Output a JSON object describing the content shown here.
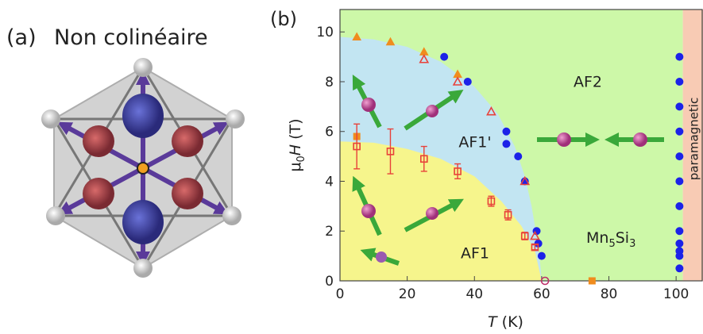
{
  "panel_a": {
    "label": "(a)",
    "title": "Non colinéaire"
  },
  "chart_data": {
    "type": "scatter",
    "panel_label": "(b)",
    "xlabel_parts": [
      "T",
      " (K)"
    ],
    "ylabel_parts": [
      "μ",
      "0",
      "H",
      " (T)"
    ],
    "xlim": [
      0,
      108
    ],
    "ylim": [
      0,
      10.9
    ],
    "xticks": [
      0,
      20,
      40,
      60,
      80,
      100
    ],
    "yticks": [
      0,
      2,
      4,
      6,
      8,
      10
    ],
    "regions": [
      {
        "label": "AF2",
        "color": "#cdf8a8",
        "x": [
          0,
          102,
          102,
          0
        ],
        "y": [
          0,
          0,
          10.9,
          10.9
        ]
      },
      {
        "label": "paramagnetic",
        "color": "#f8cbb4",
        "x": [
          102,
          108,
          108,
          102
        ],
        "y": [
          0,
          0,
          10.9,
          10.9
        ]
      },
      {
        "label": "AF1'",
        "color": "#c2e5f2",
        "x": [
          0,
          10,
          20,
          30,
          40,
          47,
          52,
          55,
          57,
          58.5,
          59.5,
          60,
          0
        ],
        "y": [
          9.8,
          9.7,
          9.4,
          8.8,
          7.8,
          6.7,
          5.4,
          4.2,
          3,
          1.8,
          0.8,
          0,
          0
        ]
      },
      {
        "label": "AF1",
        "color": "#f6f58c",
        "x": [
          0,
          10,
          20,
          30,
          40,
          48,
          54,
          58,
          60,
          0
        ],
        "y": [
          5.6,
          5.55,
          5.3,
          4.9,
          4.2,
          3.2,
          2.2,
          1.2,
          0,
          0
        ]
      }
    ],
    "compound_parts": [
      "Mn",
      "5",
      "Si",
      "3"
    ],
    "series": [
      {
        "marker": "circle",
        "filled": true,
        "color": "#1c22e8",
        "x": [
          31,
          38,
          49.5,
          49.5,
          53,
          55,
          58.5,
          59,
          60,
          101,
          101,
          101,
          101,
          101,
          101,
          101,
          101,
          101,
          101,
          101,
          101
        ],
        "values": [
          9,
          8,
          6,
          5.5,
          5,
          4,
          2,
          1.5,
          1,
          9,
          8,
          7,
          6,
          5,
          4,
          3,
          2,
          1.5,
          1.2,
          1,
          0.5
        ]
      },
      {
        "marker": "triangle",
        "filled": true,
        "color": "#f08c1e",
        "x": [
          5,
          15,
          25,
          35
        ],
        "values": [
          9.8,
          9.6,
          9.2,
          8.3
        ]
      },
      {
        "marker": "square",
        "filled": true,
        "color": "#f08c1e",
        "x": [
          5,
          75
        ],
        "values": [
          5.8,
          0
        ]
      },
      {
        "marker": "triangle",
        "filled": false,
        "color": "#e8413a",
        "x": [
          25,
          35,
          45,
          55,
          58
        ],
        "values": [
          8.9,
          8.0,
          6.8,
          4.0,
          1.8
        ]
      },
      {
        "marker": "square",
        "filled": false,
        "color": "#e8413a",
        "x": [
          5,
          15,
          25,
          35,
          45,
          50,
          55,
          58
        ],
        "values": [
          5.4,
          5.2,
          4.9,
          4.4,
          3.2,
          2.65,
          1.8,
          1.35
        ],
        "errors": [
          0.9,
          0.9,
          0.5,
          0.3,
          0.2,
          0.2,
          0.15,
          0.1
        ]
      },
      {
        "marker": "circle",
        "filled": false,
        "color": "#c0306a",
        "x": [
          61
        ],
        "values": [
          0
        ]
      }
    ]
  }
}
